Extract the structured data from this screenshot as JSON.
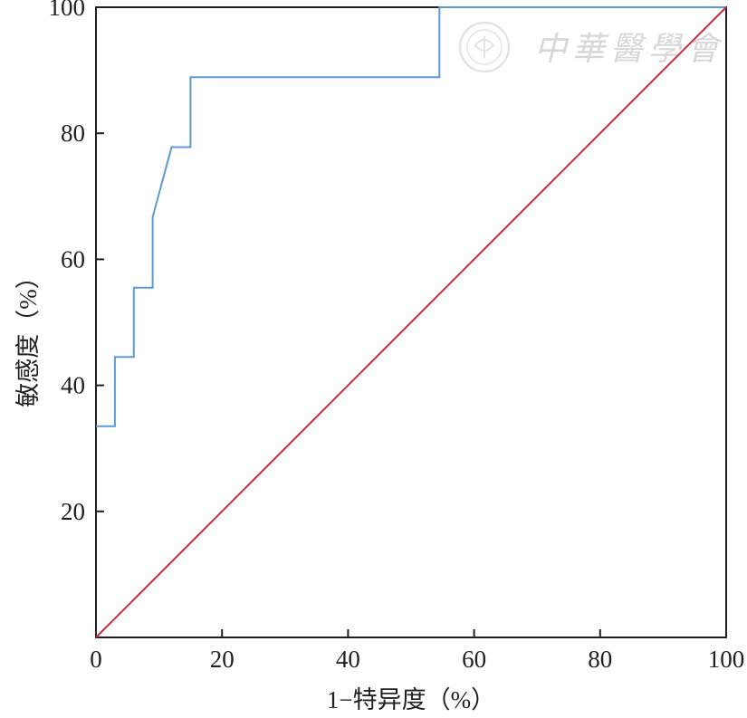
{
  "chart_data": {
    "type": "line",
    "xlabel": "1−特异度（%）",
    "ylabel": "敏感度（%）",
    "xlim": [
      0,
      100
    ],
    "ylim": [
      0,
      100
    ],
    "x_ticks": [
      0,
      20,
      40,
      60,
      80,
      100
    ],
    "y_ticks": [
      20,
      40,
      60,
      80,
      100
    ],
    "grid": false,
    "legend": "none",
    "series": [
      {
        "color": "#5b9bd5",
        "x": [
          0,
          3.0,
          3.0,
          6.0,
          6.0,
          9.0,
          9.0,
          12.0,
          15.0,
          15.0,
          54.5,
          54.5,
          100
        ],
        "y": [
          33.5,
          33.5,
          44.5,
          44.5,
          55.5,
          55.5,
          66.7,
          77.8,
          77.8,
          88.9,
          88.9,
          100,
          100
        ]
      },
      {
        "color": "#d0263e",
        "x": [
          0,
          100
        ],
        "y": [
          0,
          100
        ]
      }
    ]
  },
  "watermark": {
    "text": "中華醫學會",
    "seal_icon": "seal-logo-icon"
  }
}
